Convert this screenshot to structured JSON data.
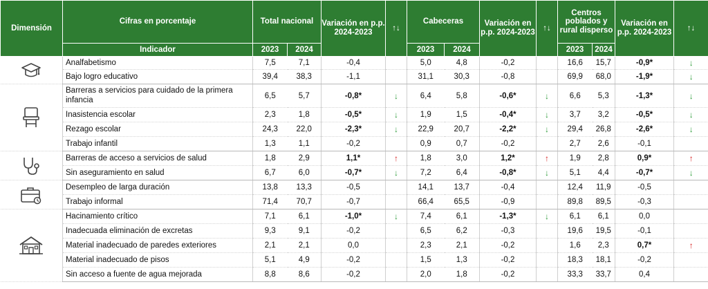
{
  "headers": {
    "dimension": "Dimensión",
    "cifras": "Cifras en porcentaje",
    "indicador": "Indicador",
    "total_nacional": "Total nacional",
    "cabeceras": "Cabeceras",
    "centros": "Centros poblados y rural disperso",
    "variacion": "Variación en p.p. 2024-2023",
    "arrows": "↑↓",
    "y2023": "2023",
    "y2024": "2024"
  },
  "colors": {
    "header_bg": "#2e7d32",
    "down_arrow": "#2e9c3a",
    "up_arrow": "#d62020"
  },
  "groups": [
    {
      "icon": "graduation-cap-icon",
      "rows": [
        {
          "indicador": "Analfabetismo",
          "tn": [
            "7,5",
            "7,1",
            "-0,4"
          ],
          "tn_bold": false,
          "tn_arrow": "",
          "cb": [
            "5,0",
            "4,8",
            "-0,2"
          ],
          "cb_bold": false,
          "cb_arrow": "",
          "cp": [
            "16,6",
            "15,7",
            "-0,9*"
          ],
          "cp_bold": true,
          "cp_arrow": "down"
        },
        {
          "indicador": "Bajo logro educativo",
          "tn": [
            "39,4",
            "38,3",
            "-1,1"
          ],
          "tn_bold": false,
          "tn_arrow": "",
          "cb": [
            "31,1",
            "30,3",
            "-0,8"
          ],
          "cb_bold": false,
          "cb_arrow": "",
          "cp": [
            "69,9",
            "68,0",
            "-1,9*"
          ],
          "cp_bold": true,
          "cp_arrow": "down"
        }
      ]
    },
    {
      "icon": "school-desk-icon",
      "rows": [
        {
          "indicador": "Barreras a servicios para cuidado de la primera infancia",
          "tn": [
            "6,5",
            "5,7",
            "-0,8*"
          ],
          "tn_bold": true,
          "tn_arrow": "down",
          "cb": [
            "6,4",
            "5,8",
            "-0,6*"
          ],
          "cb_bold": true,
          "cb_arrow": "down",
          "cp": [
            "6,6",
            "5,3",
            "-1,3*"
          ],
          "cp_bold": true,
          "cp_arrow": "down"
        },
        {
          "indicador": "Inasistencia escolar",
          "tn": [
            "2,3",
            "1,8",
            "-0,5*"
          ],
          "tn_bold": true,
          "tn_arrow": "down",
          "cb": [
            "1,9",
            "1,5",
            "-0,4*"
          ],
          "cb_bold": true,
          "cb_arrow": "down",
          "cp": [
            "3,7",
            "3,2",
            "-0,5*"
          ],
          "cp_bold": true,
          "cp_arrow": "down"
        },
        {
          "indicador": "Rezago escolar",
          "tn": [
            "24,3",
            "22,0",
            "-2,3*"
          ],
          "tn_bold": true,
          "tn_arrow": "down",
          "cb": [
            "22,9",
            "20,7",
            "-2,2*"
          ],
          "cb_bold": true,
          "cb_arrow": "down",
          "cp": [
            "29,4",
            "26,8",
            "-2,6*"
          ],
          "cp_bold": true,
          "cp_arrow": "down"
        },
        {
          "indicador": "Trabajo infantil",
          "tn": [
            "1,3",
            "1,1",
            "-0,2"
          ],
          "tn_bold": false,
          "tn_arrow": "",
          "cb": [
            "0,9",
            "0,7",
            "-0,2"
          ],
          "cb_bold": false,
          "cb_arrow": "",
          "cp": [
            "2,7",
            "2,6",
            "-0,1"
          ],
          "cp_bold": false,
          "cp_arrow": ""
        }
      ]
    },
    {
      "icon": "stethoscope-icon",
      "rows": [
        {
          "indicador": "Barreras de acceso a servicios de salud",
          "tn": [
            "1,8",
            "2,9",
            "1,1*"
          ],
          "tn_bold": true,
          "tn_arrow": "up",
          "cb": [
            "1,8",
            "3,0",
            "1,2*"
          ],
          "cb_bold": true,
          "cb_arrow": "up",
          "cp": [
            "1,9",
            "2,8",
            "0,9*"
          ],
          "cp_bold": true,
          "cp_arrow": "up"
        },
        {
          "indicador": "Sin aseguramiento en salud",
          "tn": [
            "6,7",
            "6,0",
            "-0,7*"
          ],
          "tn_bold": true,
          "tn_arrow": "down",
          "cb": [
            "7,2",
            "6,4",
            "-0,8*"
          ],
          "cb_bold": true,
          "cb_arrow": "down",
          "cp": [
            "5,1",
            "4,4",
            "-0,7*"
          ],
          "cp_bold": true,
          "cp_arrow": "down"
        }
      ]
    },
    {
      "icon": "briefcase-icon",
      "rows": [
        {
          "indicador": "Desempleo de larga duración",
          "tn": [
            "13,8",
            "13,3",
            "-0,5"
          ],
          "tn_bold": false,
          "tn_arrow": "",
          "cb": [
            "14,1",
            "13,7",
            "-0,4"
          ],
          "cb_bold": false,
          "cb_arrow": "",
          "cp": [
            "12,4",
            "11,9",
            "-0,5"
          ],
          "cp_bold": false,
          "cp_arrow": ""
        },
        {
          "indicador": "Trabajo informal",
          "tn": [
            "71,4",
            "70,7",
            "-0,7"
          ],
          "tn_bold": false,
          "tn_arrow": "",
          "cb": [
            "66,4",
            "65,5",
            "-0,9"
          ],
          "cb_bold": false,
          "cb_arrow": "",
          "cp": [
            "89,8",
            "89,5",
            "-0,3"
          ],
          "cp_bold": false,
          "cp_arrow": ""
        }
      ]
    },
    {
      "icon": "house-icon",
      "rows": [
        {
          "indicador": "Hacinamiento crítico",
          "tn": [
            "7,1",
            "6,1",
            "-1,0*"
          ],
          "tn_bold": true,
          "tn_arrow": "down",
          "cb": [
            "7,4",
            "6,1",
            "-1,3*"
          ],
          "cb_bold": true,
          "cb_arrow": "down",
          "cp": [
            "6,1",
            "6,1",
            "0,0"
          ],
          "cp_bold": false,
          "cp_arrow": ""
        },
        {
          "indicador": "Inadecuada eliminación de excretas",
          "tn": [
            "9,3",
            "9,1",
            "-0,2"
          ],
          "tn_bold": false,
          "tn_arrow": "",
          "cb": [
            "6,5",
            "6,2",
            "-0,3"
          ],
          "cb_bold": false,
          "cb_arrow": "",
          "cp": [
            "19,6",
            "19,5",
            "-0,1"
          ],
          "cp_bold": false,
          "cp_arrow": ""
        },
        {
          "indicador": "Material inadecuado de paredes exteriores",
          "tn": [
            "2,1",
            "2,1",
            "0,0"
          ],
          "tn_bold": false,
          "tn_arrow": "",
          "cb": [
            "2,3",
            "2,1",
            "-0,2"
          ],
          "cb_bold": false,
          "cb_arrow": "",
          "cp": [
            "1,6",
            "2,3",
            "0,7*"
          ],
          "cp_bold": true,
          "cp_arrow": "up"
        },
        {
          "indicador": "Material inadecuado de pisos",
          "tn": [
            "5,1",
            "4,9",
            "-0,2"
          ],
          "tn_bold": false,
          "tn_arrow": "",
          "cb": [
            "1,5",
            "1,3",
            "-0,2"
          ],
          "cb_bold": false,
          "cb_arrow": "",
          "cp": [
            "18,3",
            "18,1",
            "-0,2"
          ],
          "cp_bold": false,
          "cp_arrow": ""
        },
        {
          "indicador": "Sin acceso a fuente de agua mejorada",
          "tn": [
            "8,8",
            "8,6",
            "-0,2"
          ],
          "tn_bold": false,
          "tn_arrow": "",
          "cb": [
            "2,0",
            "1,8",
            "-0,2"
          ],
          "cb_bold": false,
          "cb_arrow": "",
          "cp": [
            "33,3",
            "33,7",
            "0,4"
          ],
          "cp_bold": false,
          "cp_arrow": ""
        }
      ]
    }
  ]
}
